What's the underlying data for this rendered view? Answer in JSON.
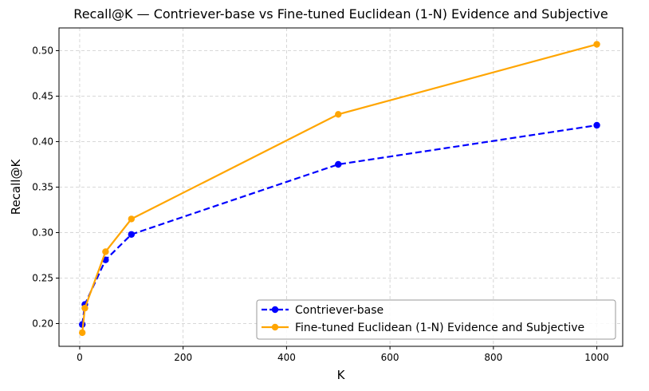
{
  "chart_data": {
    "type": "line",
    "title": "Recall@K — Contriever-base vs Fine-tuned Euclidean (1-N) Evidence and Subjective",
    "xlabel": "K",
    "ylabel": "Recall@K",
    "xlim": [
      -40,
      1050
    ],
    "ylim": [
      0.175,
      0.525
    ],
    "xticks": [
      0,
      200,
      400,
      600,
      800,
      1000
    ],
    "yticks": [
      0.2,
      0.25,
      0.3,
      0.35,
      0.4,
      0.45,
      0.5
    ],
    "ytick_labels": [
      "0.20",
      "0.25",
      "0.30",
      "0.35",
      "0.40",
      "0.45",
      "0.50"
    ],
    "grid": true,
    "legend_position": "bottom-right",
    "series": [
      {
        "name": "Contriever-base",
        "color": "#0000ff",
        "style": "dashed",
        "marker": "circle",
        "x": [
          5,
          10,
          50,
          100,
          500,
          1000
        ],
        "y": [
          0.199,
          0.221,
          0.27,
          0.298,
          0.375,
          0.418
        ]
      },
      {
        "name": "Fine-tuned Euclidean (1-N) Evidence and Subjective",
        "color": "#ffa500",
        "style": "solid",
        "marker": "circle",
        "x": [
          5,
          10,
          50,
          100,
          500,
          1000
        ],
        "y": [
          0.19,
          0.217,
          0.279,
          0.315,
          0.43,
          0.507
        ]
      }
    ]
  }
}
